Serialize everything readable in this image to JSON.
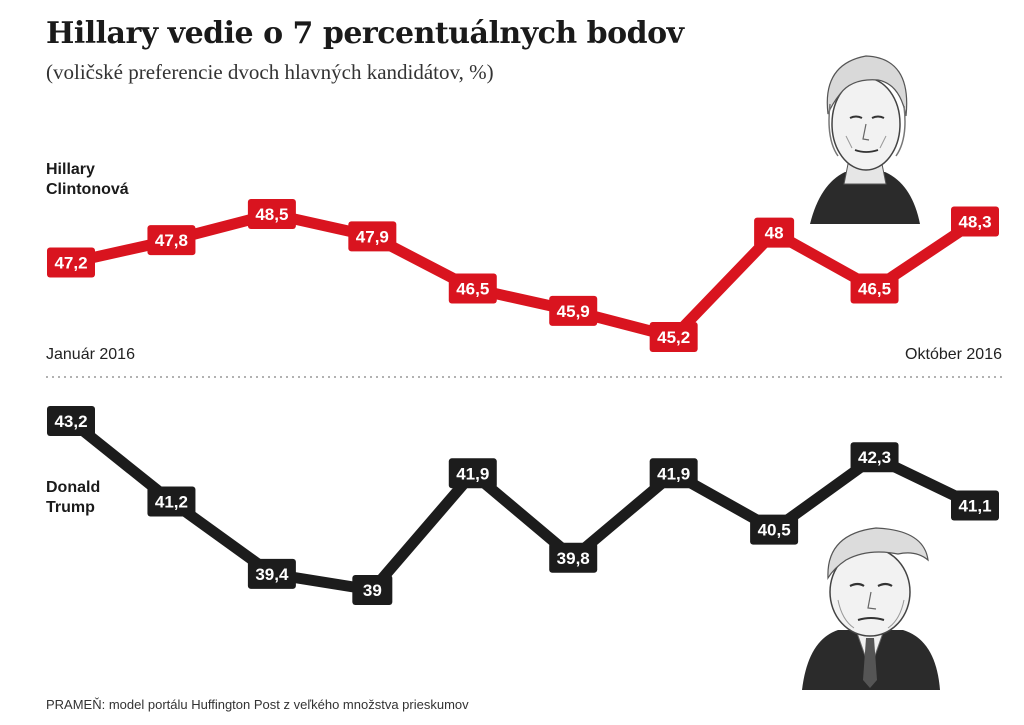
{
  "title": "Hillary vedie o 7 percentuálnych bodov",
  "subtitle": "(voličské preferencie dvoch hlavných kandidátov, %)",
  "axis": {
    "start_label": "Január 2016",
    "end_label": "Október 2016"
  },
  "source": "PRAMEŇ: model portálu Huffington Post z veľkého množstva prieskumov",
  "colors": {
    "clinton": "#d9141f",
    "trump": "#1c1c1c"
  },
  "chart_data": {
    "type": "line",
    "x": [
      "Január 2016",
      "",
      "",
      "",
      "",
      "",
      "",
      "",
      "",
      "Október 2016"
    ],
    "series": [
      {
        "name": "Hillary Clintonová",
        "name_lines": [
          "Hillary",
          "Clintonová"
        ],
        "values": [
          47.2,
          47.8,
          48.5,
          47.9,
          46.5,
          45.9,
          45.2,
          48,
          46.5,
          48.3
        ],
        "labels": [
          "47,2",
          "47,8",
          "48,5",
          "47,9",
          "46,5",
          "45,9",
          "45,2",
          "48",
          "46,5",
          "48,3"
        ]
      },
      {
        "name": "Donald Trump",
        "name_lines": [
          "Donald",
          "Trump"
        ],
        "values": [
          43.2,
          41.2,
          39.4,
          39,
          41.9,
          39.8,
          41.9,
          40.5,
          42.3,
          41.1
        ],
        "labels": [
          "43,2",
          "41,2",
          "39,4",
          "39",
          "41,9",
          "39,8",
          "41,9",
          "40,5",
          "42,3",
          "41,1"
        ]
      }
    ],
    "grid": false,
    "legend": "inline-left"
  }
}
